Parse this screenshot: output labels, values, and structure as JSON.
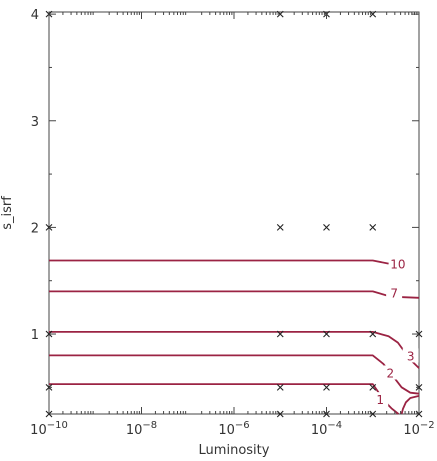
{
  "chart_data": {
    "type": "line",
    "subtype": "contour",
    "xlabel": "Luminosity",
    "ylabel": "s_isrf",
    "x_scale": "log",
    "xlim": [
      1e-10,
      0.01
    ],
    "ylim": [
      0.25,
      4.02
    ],
    "x_ticks": [
      {
        "value": 1e-10,
        "base": "10",
        "exp": "−10"
      },
      {
        "value": 1e-08,
        "base": "10",
        "exp": "−8"
      },
      {
        "value": 1e-06,
        "base": "10",
        "exp": "−6"
      },
      {
        "value": 0.0001,
        "base": "10",
        "exp": "−4"
      },
      {
        "value": 0.01,
        "base": "10",
        "exp": "−2"
      }
    ],
    "y_ticks": [
      {
        "value": 1,
        "label": "1"
      },
      {
        "value": 2,
        "label": "2"
      },
      {
        "value": 3,
        "label": "3"
      },
      {
        "value": 4,
        "label": "4"
      }
    ],
    "grid": false,
    "legend": "none",
    "contour_color": "#9b2343",
    "sample_points": [
      {
        "x": 1e-10,
        "y": 4.0
      },
      {
        "x": 1e-05,
        "y": 4.0
      },
      {
        "x": 0.0001,
        "y": 4.0
      },
      {
        "x": 0.001,
        "y": 4.0
      },
      {
        "x": 1e-10,
        "y": 2.0
      },
      {
        "x": 1e-05,
        "y": 2.0
      },
      {
        "x": 0.0001,
        "y": 2.0
      },
      {
        "x": 0.001,
        "y": 2.0
      },
      {
        "x": 1e-10,
        "y": 1.0
      },
      {
        "x": 1e-05,
        "y": 1.0
      },
      {
        "x": 0.0001,
        "y": 1.0
      },
      {
        "x": 0.001,
        "y": 1.0
      },
      {
        "x": 0.01,
        "y": 1.0
      },
      {
        "x": 1e-10,
        "y": 0.5
      },
      {
        "x": 1e-05,
        "y": 0.5
      },
      {
        "x": 0.0001,
        "y": 0.5
      },
      {
        "x": 0.001,
        "y": 0.5
      },
      {
        "x": 0.01,
        "y": 0.5
      },
      {
        "x": 1e-10,
        "y": 0.25
      },
      {
        "x": 1e-05,
        "y": 0.25
      },
      {
        "x": 0.0001,
        "y": 0.25
      },
      {
        "x": 0.001,
        "y": 0.25
      },
      {
        "x": 0.01,
        "y": 0.25
      }
    ],
    "contours": [
      {
        "level": "10",
        "points": [
          [
            1e-10,
            1.69
          ],
          [
            0.001,
            1.69
          ],
          [
            0.0022,
            1.66
          ]
        ],
        "label_at": [
          0.0035,
          1.65
        ]
      },
      {
        "level": "7",
        "points": [
          [
            1e-10,
            1.4
          ],
          [
            0.001,
            1.4
          ],
          [
            0.0025,
            1.35
          ],
          [
            0.01,
            1.34
          ]
        ],
        "label_at": [
          0.0029,
          1.38
        ]
      },
      {
        "level": "3",
        "points": [
          [
            1e-10,
            1.02
          ],
          [
            0.001,
            1.02
          ],
          [
            0.0022,
            0.98
          ],
          [
            0.0035,
            0.92
          ],
          [
            0.0065,
            0.76
          ],
          [
            0.01,
            0.68
          ]
        ],
        "label_at": [
          0.0066,
          0.79
        ]
      },
      {
        "level": "2",
        "points": [
          [
            1e-10,
            0.8
          ],
          [
            0.001,
            0.8
          ],
          [
            0.0017,
            0.72
          ],
          [
            0.0028,
            0.6
          ],
          [
            0.0042,
            0.5
          ],
          [
            0.0065,
            0.45
          ],
          [
            0.01,
            0.44
          ]
        ],
        "label_at": [
          0.0024,
          0.63
        ]
      },
      {
        "level": "1",
        "points": [
          [
            1e-10,
            0.53
          ],
          [
            0.001,
            0.53
          ],
          [
            0.0013,
            0.46
          ],
          [
            0.0018,
            0.37
          ],
          [
            0.0026,
            0.3
          ],
          [
            0.0036,
            0.25
          ]
        ],
        "label_at": [
          0.00145,
          0.38
        ]
      },
      {
        "level": "",
        "points": [
          [
            0.0042,
            0.25
          ],
          [
            0.0045,
            0.3
          ],
          [
            0.0052,
            0.36
          ],
          [
            0.0065,
            0.4
          ],
          [
            0.01,
            0.42
          ]
        ],
        "label_at": null
      }
    ]
  }
}
